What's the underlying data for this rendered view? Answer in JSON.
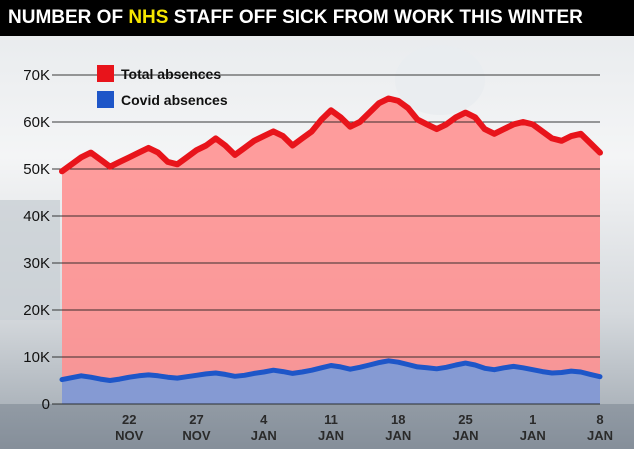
{
  "headline": {
    "before": "NUMBER OF ",
    "highlight": "NHS",
    "after": " STAFF OFF SICK FROM WORK THIS WINTER"
  },
  "colors": {
    "total": "#e8141b",
    "total_fill": "#ff8f8f",
    "covid": "#1e56c8",
    "covid_fill": "#7e9ad6",
    "headline_bg": "#000000",
    "headline_highlight": "#f6e600"
  },
  "chart_data": {
    "type": "area",
    "title": "NUMBER OF NHS STAFF OFF SICK FROM WORK THIS WINTER",
    "xlabel": "",
    "ylabel": "",
    "ylim": [
      0,
      70000
    ],
    "y_ticks": [
      0,
      10000,
      20000,
      30000,
      40000,
      50000,
      60000,
      70000
    ],
    "y_tick_labels": [
      "0",
      "10K",
      "20K",
      "30K",
      "40K",
      "50K",
      "60K",
      "70K"
    ],
    "x_tick_labels": [
      {
        "day": 7,
        "line1": "22",
        "line2": "NOV"
      },
      {
        "day": 14,
        "line1": "27",
        "line2": "NOV"
      },
      {
        "day": 21,
        "line1": "4",
        "line2": "JAN"
      },
      {
        "day": 28,
        "line1": "11",
        "line2": "JAN"
      },
      {
        "day": 35,
        "line1": "18",
        "line2": "JAN"
      },
      {
        "day": 42,
        "line1": "25",
        "line2": "JAN"
      },
      {
        "day": 49,
        "line1": "1",
        "line2": "JAN"
      },
      {
        "day": 56,
        "line1": "8",
        "line2": "JAN"
      }
    ],
    "x": [
      0,
      1,
      2,
      3,
      4,
      5,
      6,
      7,
      8,
      9,
      10,
      11,
      12,
      13,
      14,
      15,
      16,
      17,
      18,
      19,
      20,
      21,
      22,
      23,
      24,
      25,
      26,
      27,
      28,
      29,
      30,
      31,
      32,
      33,
      34,
      35,
      36,
      37,
      38,
      39,
      40,
      41,
      42,
      43,
      44,
      45,
      46,
      47,
      48,
      49,
      50,
      51,
      52,
      53,
      54,
      55,
      56
    ],
    "series": [
      {
        "name": "Total absences",
        "values": [
          49500,
          51000,
          52500,
          53500,
          52000,
          50500,
          51500,
          52500,
          53500,
          54500,
          53500,
          51500,
          51000,
          52500,
          54000,
          55000,
          56500,
          55000,
          53000,
          54500,
          56000,
          57000,
          58000,
          57000,
          55000,
          56500,
          58000,
          60500,
          62500,
          61000,
          59000,
          60000,
          62000,
          64000,
          65000,
          64500,
          63000,
          60500,
          59500,
          58500,
          59500,
          61000,
          62000,
          61000,
          58500,
          57500,
          58500,
          59500,
          60000,
          59500,
          58000,
          56500,
          56000,
          57000,
          57500,
          55500,
          53500
        ]
      },
      {
        "name": "Covid absences",
        "values": [
          5200,
          5600,
          6000,
          5700,
          5300,
          5000,
          5300,
          5700,
          6000,
          6200,
          6000,
          5700,
          5500,
          5800,
          6100,
          6400,
          6600,
          6300,
          5900,
          6100,
          6500,
          6800,
          7200,
          6900,
          6500,
          6800,
          7200,
          7700,
          8200,
          7900,
          7400,
          7800,
          8300,
          8800,
          9200,
          8900,
          8400,
          7900,
          7700,
          7500,
          7800,
          8300,
          8700,
          8300,
          7600,
          7300,
          7700,
          8000,
          7700,
          7300,
          6900,
          6600,
          6700,
          7000,
          6800,
          6300,
          5800
        ]
      }
    ],
    "legend": {
      "placement": "top-left"
    },
    "grid": {
      "y": true,
      "x": false
    }
  }
}
